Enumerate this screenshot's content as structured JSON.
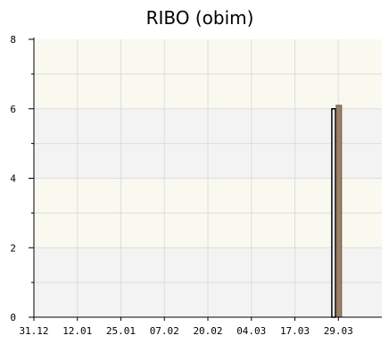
{
  "chart_data": {
    "type": "bar",
    "title": "RIBO (obim)",
    "xlabel": "",
    "ylabel": "",
    "x_tick_labels": [
      "31.12",
      "12.01",
      "25.01",
      "07.02",
      "20.02",
      "04.03",
      "17.03",
      "29.03"
    ],
    "x_domain_index": [
      0,
      8
    ],
    "ylim": [
      0,
      8
    ],
    "y_ticks": [
      0,
      2,
      4,
      6,
      8
    ],
    "grid": true,
    "legend": "none",
    "bars": [
      {
        "x_index": 6.85,
        "value": 6,
        "style": "outline"
      },
      {
        "x_index": 6.95,
        "value": 6.1,
        "style": "filled"
      }
    ],
    "colors": {
      "band_light": "#f9f9ef",
      "band_grey": "#f3f3f3",
      "grid": "#dddddd",
      "axis": "#000000",
      "bar_outline": "#000000",
      "bar_fill": "#9a8068",
      "bar_fill_dark": "#6f5c4b"
    }
  }
}
